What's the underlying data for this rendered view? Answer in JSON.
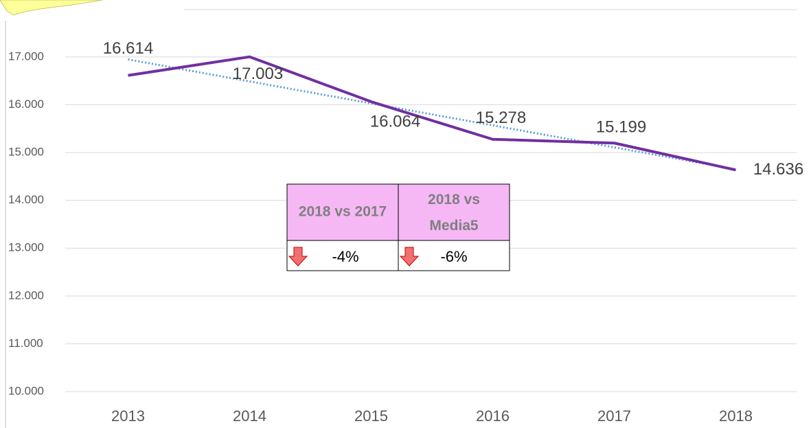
{
  "chart_data": {
    "type": "line",
    "categories": [
      "2013",
      "2014",
      "2015",
      "2016",
      "2017",
      "2018"
    ],
    "series": [
      {
        "color": "#7030a0",
        "values": [
          16.614,
          17.003,
          16.064,
          15.278,
          15.199,
          14.636
        ]
      }
    ],
    "trendline": "linear",
    "trendline_color": "#5b9bd5",
    "ylim": [
      10,
      17.2
    ],
    "yticks": [
      {
        "value": 10,
        "label": "10.000"
      },
      {
        "value": 11,
        "label": "11.000"
      },
      {
        "value": 12,
        "label": "12.000"
      },
      {
        "value": 13,
        "label": "13.000"
      },
      {
        "value": 14,
        "label": "14.000"
      },
      {
        "value": 15,
        "label": "15.000"
      },
      {
        "value": 16,
        "label": "16.000"
      },
      {
        "value": 17,
        "label": "17.000"
      }
    ],
    "grid": true
  },
  "table": {
    "header": [
      "2018 vs 2017",
      "2018  vs Media5"
    ],
    "rows": [
      [
        "-4%",
        "-6%"
      ]
    ]
  }
}
